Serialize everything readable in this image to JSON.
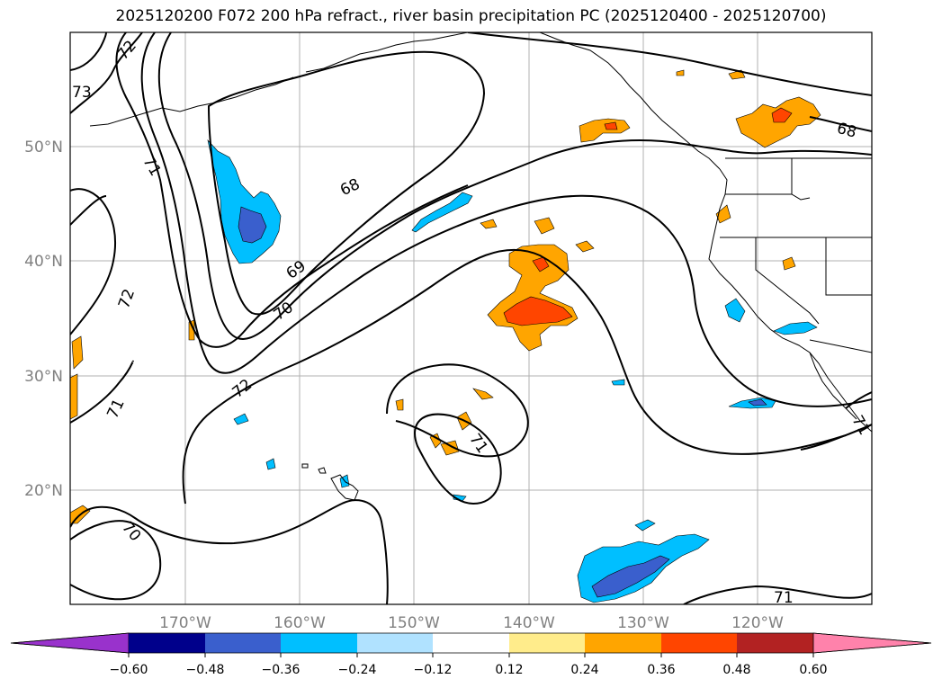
{
  "title": "2025120200 F072 200 hPa refract., river basin precipitation PC (2025120400 - 2025120700)",
  "colors": {
    "grid": "#b0b0b0",
    "coast": "#000000",
    "contour": "#000000",
    "pos_low": "#ffe98a",
    "pos_mid": "#ffa500",
    "pos_high": "#ff4500",
    "neg_low": "#00bfff",
    "neg_mid": "#4169e1"
  },
  "map": {
    "lon_ticks": [
      "170°W",
      "160°W",
      "150°W",
      "140°W",
      "130°W",
      "120°W"
    ],
    "lat_ticks": [
      "50°N",
      "40°N",
      "30°N",
      "20°N"
    ]
  },
  "contour_labels": [
    "72",
    "73",
    "71",
    "68",
    "69",
    "70",
    "72",
    "71",
    "72",
    "71",
    "70",
    "71",
    "68",
    "71"
  ],
  "colorbar": {
    "colors": [
      "#9932cc",
      "#00008b",
      "#3a5fcd",
      "#00bfff",
      "#b0e2ff",
      "#ffffff",
      "#ffec8b",
      "#ffa500",
      "#ff4500",
      "#b22222",
      "#ff82ab"
    ],
    "tick_labels": [
      "−0.60",
      "−0.48",
      "−0.36",
      "−0.24",
      "−0.12",
      "0.12",
      "0.24",
      "0.36",
      "0.48",
      "0.60"
    ]
  }
}
